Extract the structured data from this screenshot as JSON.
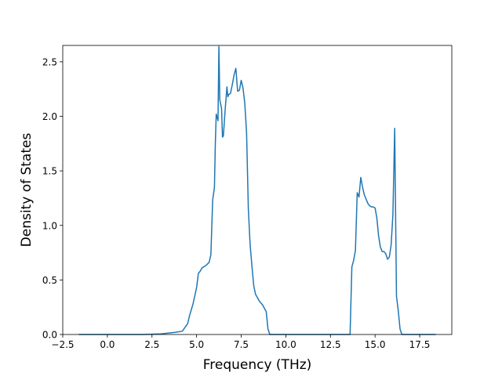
{
  "chart_data": {
    "type": "line",
    "title": "",
    "xlabel": "Frequency (THz)",
    "ylabel": "Density of States",
    "xlim": [
      -2.5,
      19.3
    ],
    "ylim": [
      0,
      2.65
    ],
    "x_ticks": [
      -2.5,
      0.0,
      2.5,
      5.0,
      7.5,
      10.0,
      12.5,
      15.0,
      17.5
    ],
    "x_tick_labels": [
      "−2.5",
      "0.0",
      "2.5",
      "5.0",
      "7.5",
      "10.0",
      "12.5",
      "15.0",
      "17.5"
    ],
    "y_ticks": [
      0.0,
      0.5,
      1.0,
      1.5,
      2.0,
      2.5
    ],
    "y_tick_labels": [
      "0.0",
      "0.5",
      "1.0",
      "1.5",
      "2.0",
      "2.5"
    ],
    "grid": false,
    "series": [
      {
        "color": "#1f77b4",
        "x": [
          -1.6,
          -1.0,
          0.0,
          1.0,
          2.0,
          3.0,
          3.8,
          4.2,
          4.5,
          4.6,
          4.8,
          5.0,
          5.1,
          5.2,
          5.3,
          5.5,
          5.7,
          5.8,
          5.9,
          6.0,
          6.05,
          6.1,
          6.2,
          6.25,
          6.3,
          6.4,
          6.45,
          6.5,
          6.6,
          6.7,
          6.75,
          6.8,
          6.9,
          7.0,
          7.1,
          7.2,
          7.3,
          7.4,
          7.5,
          7.6,
          7.7,
          7.8,
          7.9,
          8.0,
          8.1,
          8.2,
          8.3,
          8.4,
          8.5,
          8.6,
          8.7,
          8.8,
          8.9,
          9.0,
          9.1,
          9.2,
          9.3,
          9.4,
          9.6,
          10.0,
          11.0,
          12.0,
          13.0,
          13.5,
          13.6,
          13.7,
          13.8,
          13.9,
          14.0,
          14.1,
          14.2,
          14.3,
          14.4,
          14.5,
          14.6,
          14.7,
          14.8,
          14.9,
          15.0,
          15.1,
          15.2,
          15.3,
          15.4,
          15.5,
          15.6,
          15.7,
          15.8,
          15.9,
          16.0,
          16.1,
          16.2,
          16.3,
          16.4,
          16.5,
          16.6,
          16.7,
          16.8,
          17.0,
          17.5,
          18.0,
          18.4
        ],
        "y": [
          0.0,
          0.0,
          0.0,
          0.0,
          0.0,
          0.005,
          0.02,
          0.03,
          0.1,
          0.17,
          0.28,
          0.43,
          0.56,
          0.58,
          0.61,
          0.63,
          0.66,
          0.73,
          1.23,
          1.35,
          1.75,
          2.02,
          1.96,
          2.64,
          2.15,
          2.07,
          1.81,
          1.82,
          2.06,
          2.27,
          2.18,
          2.2,
          2.21,
          2.29,
          2.38,
          2.44,
          2.23,
          2.24,
          2.33,
          2.26,
          2.12,
          1.85,
          1.15,
          0.82,
          0.63,
          0.45,
          0.37,
          0.34,
          0.31,
          0.29,
          0.27,
          0.24,
          0.21,
          0.05,
          0.0,
          0.0,
          0.0,
          0.0,
          0.0,
          0.0,
          0.0,
          0.0,
          0.0,
          0.0,
          0.0,
          0.62,
          0.68,
          0.77,
          1.3,
          1.26,
          1.44,
          1.35,
          1.28,
          1.24,
          1.2,
          1.18,
          1.17,
          1.17,
          1.16,
          1.07,
          0.9,
          0.8,
          0.76,
          0.76,
          0.74,
          0.69,
          0.71,
          0.82,
          1.1,
          1.89,
          0.35,
          0.22,
          0.05,
          0.0,
          0.0,
          0.0,
          0.0,
          0.0,
          0.0,
          0.0,
          0.0
        ]
      }
    ]
  }
}
